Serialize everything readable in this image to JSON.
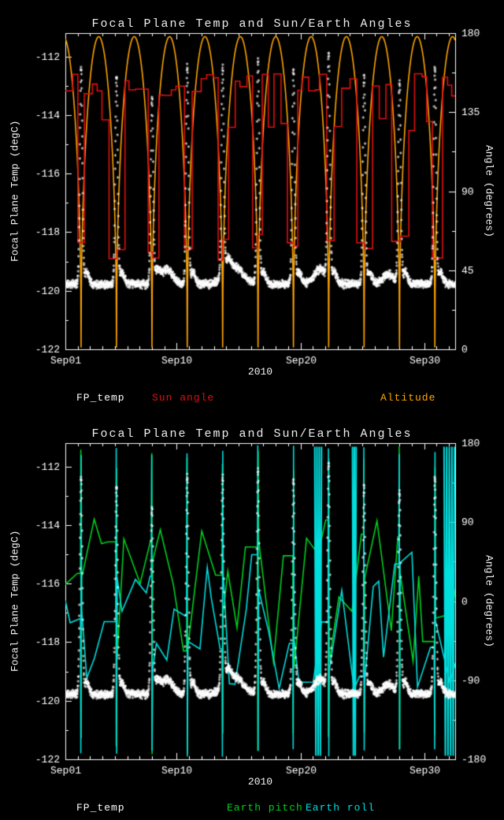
{
  "chart_data": [
    {
      "title": "Focal Plane Temp and Sun/Earth Angles",
      "type": "line",
      "xlabel": "2010",
      "ylabel_left": "Focal Plane Temp (degC)",
      "ylabel_right": "Angle (degrees)",
      "background": "#000000",
      "axis_color": "#ffffff",
      "xlim": [
        1,
        32.5
      ],
      "x_ticks": [
        {
          "day": 1,
          "label": "Sep01"
        },
        {
          "day": 10,
          "label": "Sep10"
        },
        {
          "day": 20,
          "label": "Sep20"
        },
        {
          "day": 30,
          "label": "Sep30"
        }
      ],
      "x_minor_step": 1,
      "ylim_left": [
        -122,
        -111.2
      ],
      "left_ticks": [
        -112,
        -114,
        -116,
        -118,
        -120,
        -122
      ],
      "left_minor_step": 1,
      "ylim_right": [
        0,
        180
      ],
      "right_ticks": [
        180,
        135,
        90,
        45,
        0
      ],
      "right_minor_step": 22.5,
      "event_days": [
        2.27,
        5.13,
        8.0,
        10.85,
        13.71,
        16.57,
        19.43,
        22.28,
        25.14,
        28.0,
        30.86
      ],
      "series": [
        {
          "name": "Altitude",
          "color": "#ffa400",
          "axis": "right",
          "style": "arcs",
          "seed": 5,
          "peak": 178,
          "min": 1,
          "shape_exponent": 0.45,
          "period": 2.858
        },
        {
          "name": "Sun angle",
          "color": "#e01010",
          "axis": "right",
          "style": "steps",
          "seed": 22,
          "dur": [
            0.32,
            0.77
          ],
          "low": [
            50,
            66
          ],
          "mid": [
            120,
            136
          ],
          "high": [
            144,
            158
          ]
        },
        {
          "name": "FP_temp",
          "color": "#ffffff",
          "axis": "left",
          "style": "stars",
          "marker": "*",
          "seed": 11,
          "baseline": -119.85,
          "noise": 0.09,
          "spike_sigma": 0.1,
          "hump_amp": 0.4,
          "spike_peaks": [
            -112.5,
            -112.8,
            -113.6,
            -112.4,
            -112.7,
            -112.3,
            -112.6,
            -112.2,
            -112.8,
            -113.0,
            -112.5
          ],
          "bumps": [
            {
              "day": 9.2,
              "amp": 0.5,
              "width": 0.45
            },
            {
              "day": 14.6,
              "amp": 0.6,
              "width": 0.7
            },
            {
              "day": 21.6,
              "amp": 0.5,
              "width": 0.5
            },
            {
              "day": 27.1,
              "amp": 0.35,
              "width": 0.4
            }
          ]
        }
      ],
      "legend": [
        {
          "label": "FP_temp",
          "color": "#ffffff"
        },
        {
          "label": "Sun angle",
          "color": "#e01010"
        },
        {
          "label": "Altitude",
          "color": "#ffa400"
        }
      ]
    },
    {
      "title": "Focal Plane Temp and Sun/Earth Angles",
      "type": "line",
      "xlabel": "2010",
      "ylabel_left": "Focal Plane Temp (degC)",
      "ylabel_right": "Angle (degrees)",
      "background": "#000000",
      "axis_color": "#ffffff",
      "xlim": [
        1,
        32.5
      ],
      "x_ticks": [
        {
          "day": 1,
          "label": "Sep01"
        },
        {
          "day": 10,
          "label": "Sep10"
        },
        {
          "day": 20,
          "label": "Sep20"
        },
        {
          "day": 30,
          "label": "Sep30"
        }
      ],
      "x_minor_step": 1,
      "ylim_left": [
        -122,
        -111.2
      ],
      "left_ticks": [
        -112,
        -114,
        -116,
        -118,
        -120,
        -122
      ],
      "left_minor_step": 1,
      "ylim_right": [
        -180,
        180
      ],
      "right_ticks": [
        180,
        90,
        0,
        -90,
        -180
      ],
      "right_minor_step": 45,
      "event_days": [
        2.27,
        5.13,
        8.0,
        10.85,
        13.71,
        16.57,
        19.43,
        22.28,
        25.14,
        28.0,
        30.86
      ],
      "series": [
        {
          "name": "Earth pitch",
          "color": "#00d020",
          "axis": "right",
          "style": "polyline",
          "seed": 33,
          "range": [
            -80,
            100
          ],
          "exc": [
            148,
            178
          ],
          "burst_amp": 176
        },
        {
          "name": "Earth roll",
          "color": "#00dede",
          "axis": "right",
          "style": "polyline",
          "seed": 47,
          "range": [
            -100,
            60
          ],
          "exc": [
            166,
            178
          ],
          "burst_amp": 176,
          "bursts": [
            {
              "day": 21.15,
              "width": 0.55,
              "cycles": 3
            },
            {
              "day": 24.2,
              "width": 0.3,
              "cycles": 2
            },
            {
              "day": 31.6,
              "width": 0.85,
              "cycles": 4
            }
          ]
        },
        {
          "name": "FP_temp",
          "color": "#ffffff",
          "axis": "left",
          "style": "stars",
          "marker": "*",
          "seed": 11,
          "baseline": -119.85,
          "noise": 0.09,
          "spike_sigma": 0.1,
          "hump_amp": 0.4,
          "spike_peaks": [
            -112.5,
            -112.8,
            -113.6,
            -112.4,
            -112.7,
            -112.3,
            -112.6,
            -112.2,
            -112.8,
            -113.0,
            -112.5
          ],
          "bumps": [
            {
              "day": 9.2,
              "amp": 0.5,
              "width": 0.45
            },
            {
              "day": 14.6,
              "amp": 0.6,
              "width": 0.7
            },
            {
              "day": 21.6,
              "amp": 0.5,
              "width": 0.5
            },
            {
              "day": 27.1,
              "amp": 0.35,
              "width": 0.4
            }
          ]
        }
      ],
      "legend": [
        {
          "label": "FP_temp",
          "color": "#ffffff"
        },
        {
          "label": "Earth pitch",
          "color": "#00d020"
        },
        {
          "label": "Earth roll",
          "color": "#00dede"
        }
      ]
    }
  ]
}
